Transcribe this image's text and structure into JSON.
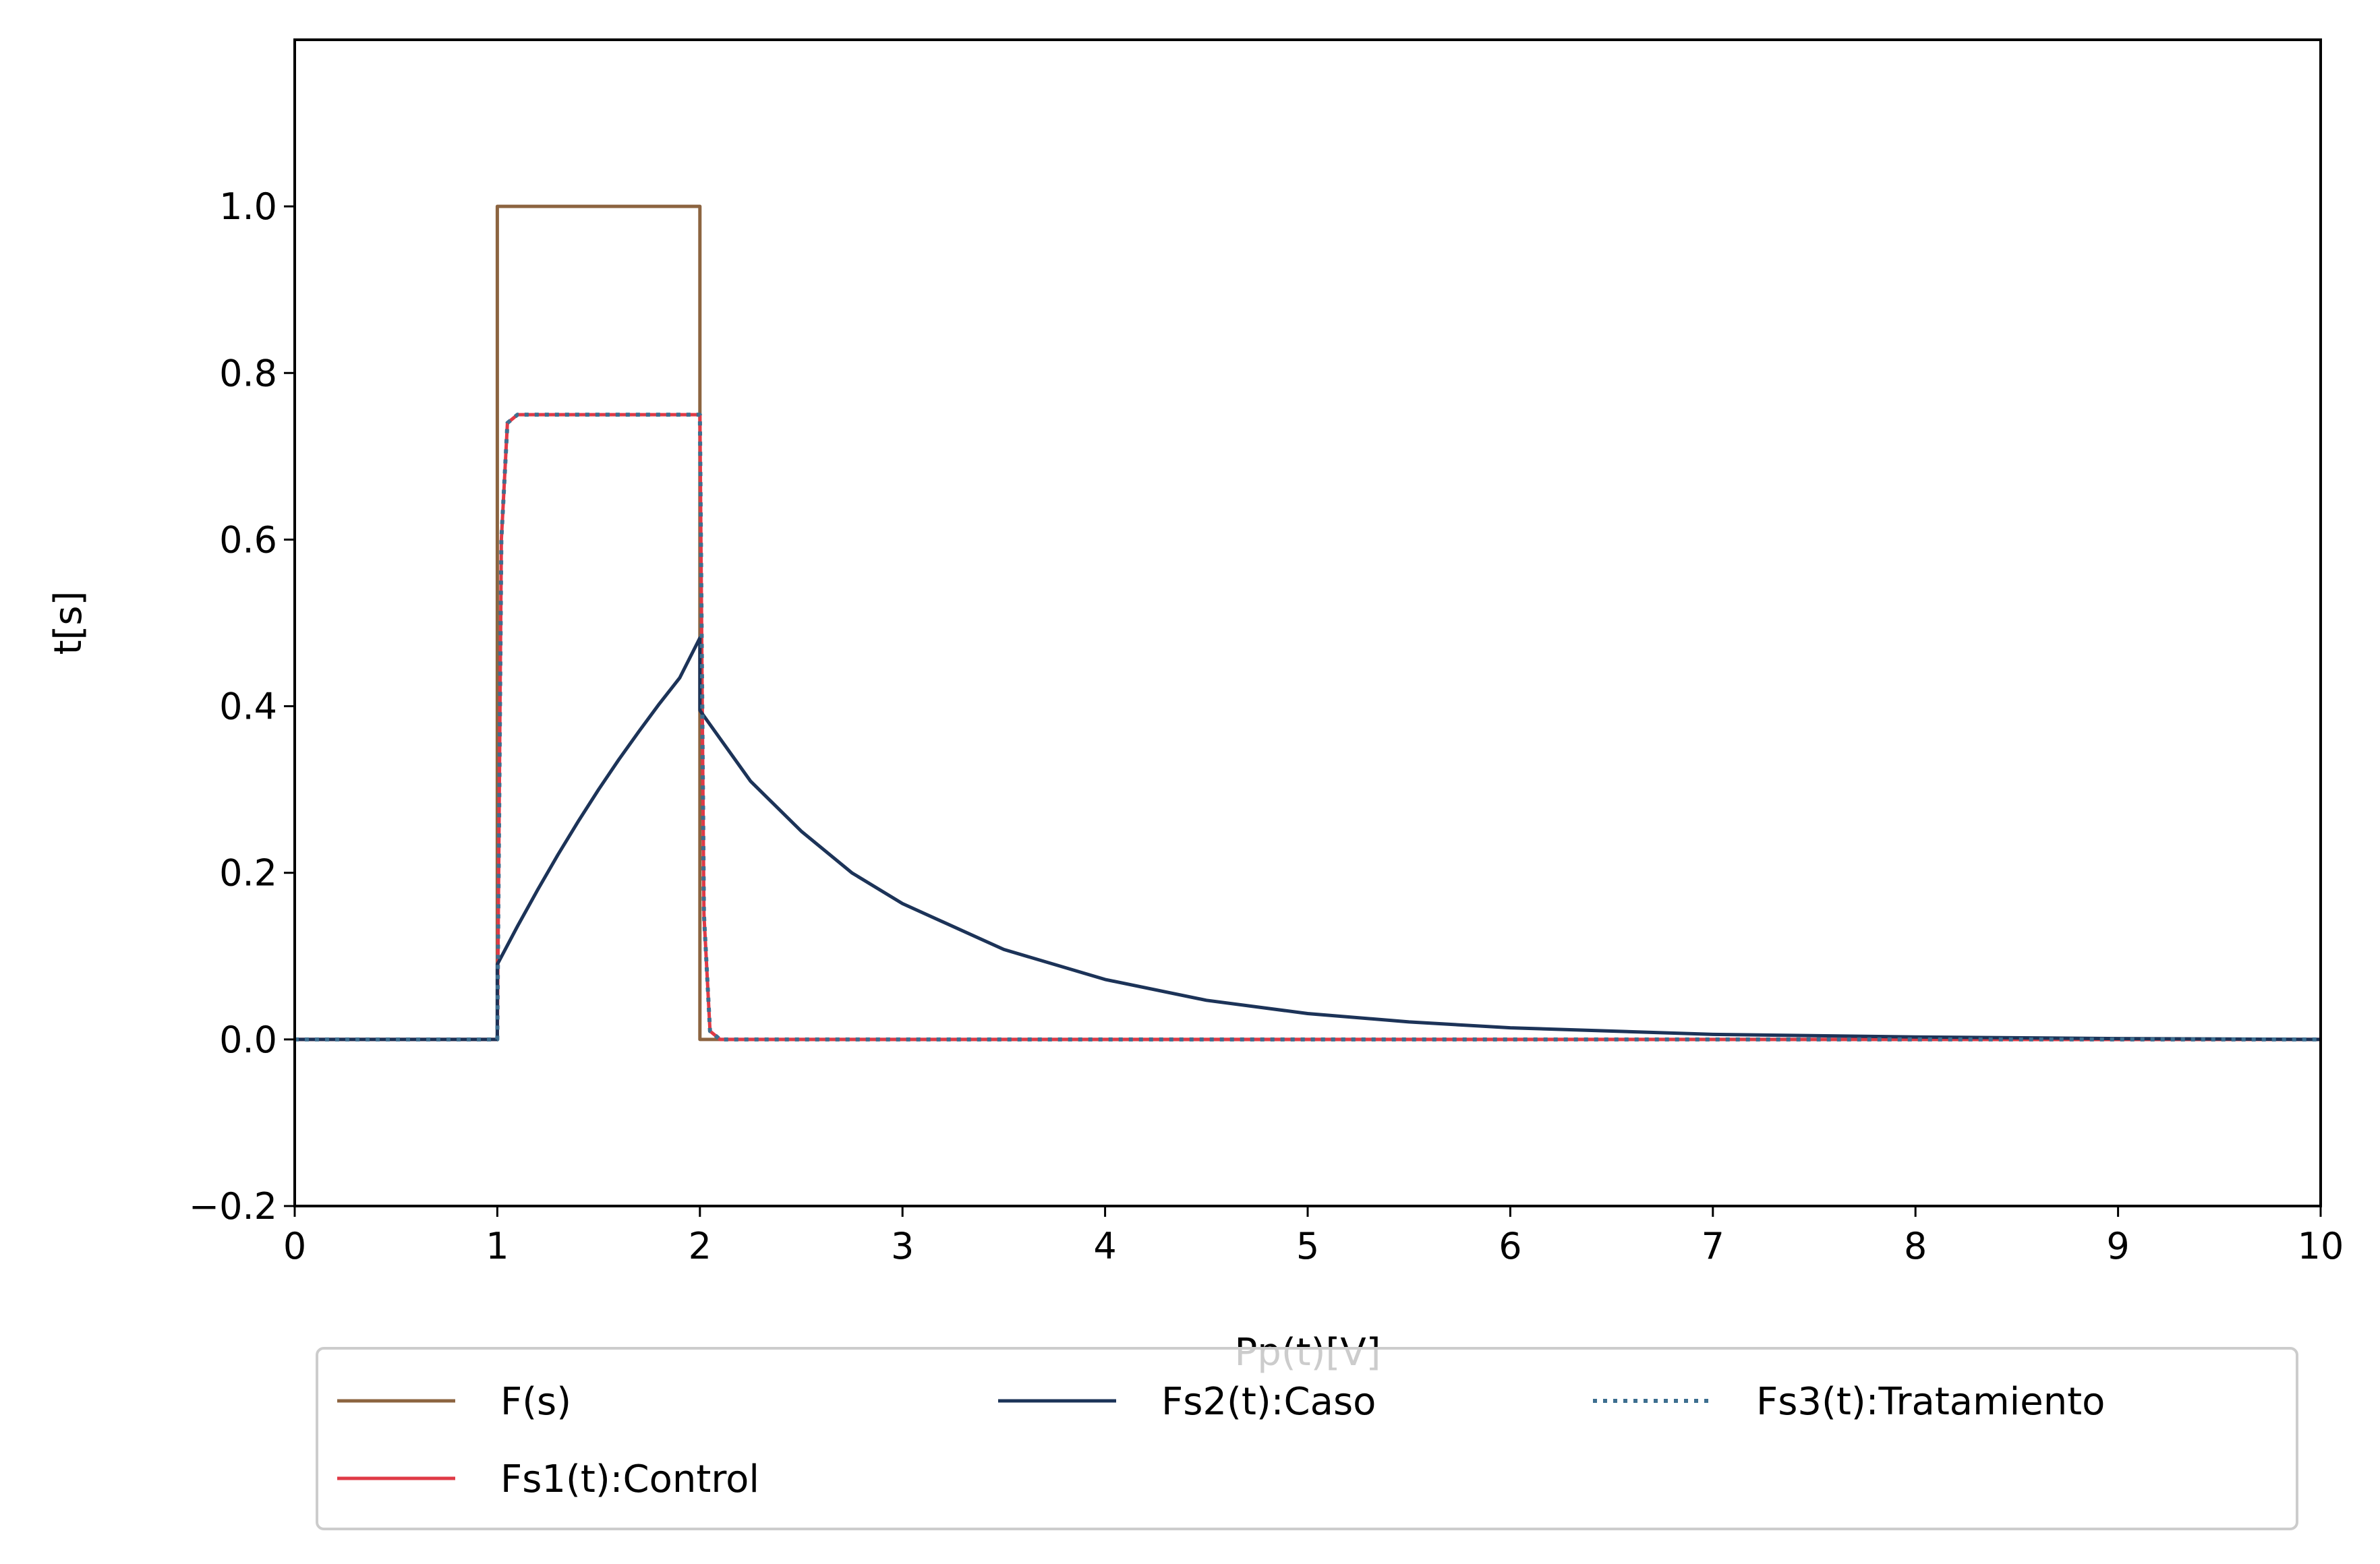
{
  "chart_data": {
    "type": "line",
    "xlabel": "Pp(t)[V]",
    "ylabel": "t[s]",
    "xlim": [
      0,
      10
    ],
    "ylim": [
      -0.2,
      1.2
    ],
    "xticks": [
      0,
      1,
      2,
      3,
      4,
      5,
      6,
      7,
      8,
      9,
      10
    ],
    "xtick_labels": [
      "0",
      "1",
      "2",
      "3",
      "4",
      "5",
      "6",
      "7",
      "8",
      "9",
      "10"
    ],
    "yticks": [
      -0.2,
      0.0,
      0.2,
      0.4,
      0.6,
      0.8,
      1.0
    ],
    "ytick_labels": [
      "−0.2",
      "0.0",
      "0.2",
      "0.4",
      "0.6",
      "0.8",
      "1.0"
    ],
    "grid": false,
    "legend_placement": "bottom-center, below axes",
    "series": [
      {
        "name": "F(s)",
        "color": "#8c6440",
        "style": "solid",
        "x": [
          0,
          1,
          1,
          2,
          2,
          10
        ],
        "y": [
          0,
          0,
          1,
          1,
          0,
          0
        ]
      },
      {
        "name": "Fs1(t):Control",
        "color": "#e03a46",
        "style": "solid",
        "x": [
          0,
          1,
          1.02,
          1.05,
          1.1,
          2,
          2.02,
          2.05,
          2.1,
          10
        ],
        "y": [
          0,
          0,
          0.6,
          0.74,
          0.75,
          0.75,
          0.15,
          0.01,
          0,
          0
        ]
      },
      {
        "name": "Fs2(t):Caso",
        "color": "#1c3358",
        "style": "solid",
        "x": [
          0,
          1,
          1,
          1.1,
          1.2,
          1.3,
          1.4,
          1.5,
          1.6,
          1.7,
          1.8,
          1.9,
          2,
          2,
          2.25,
          2.5,
          2.75,
          3,
          3.5,
          4,
          4.5,
          5,
          5.5,
          6,
          7,
          8,
          9,
          10
        ],
        "y": [
          0,
          0,
          0.09,
          0.136,
          0.18,
          0.222,
          0.262,
          0.3,
          0.336,
          0.37,
          0.403,
          0.434,
          0.482,
          0.395,
          0.31,
          0.25,
          0.2,
          0.163,
          0.108,
          0.072,
          0.047,
          0.031,
          0.021,
          0.014,
          0.006,
          0.003,
          0.001,
          0
        ]
      },
      {
        "name": "Fs3(t):Tratamiento",
        "color": "#3d6f90",
        "style": "dotted",
        "x": [
          0,
          1,
          1.02,
          1.05,
          1.1,
          2,
          2.02,
          2.05,
          2.1,
          10
        ],
        "y": [
          0,
          0,
          0.6,
          0.74,
          0.75,
          0.75,
          0.15,
          0.01,
          0,
          0
        ]
      }
    ]
  }
}
